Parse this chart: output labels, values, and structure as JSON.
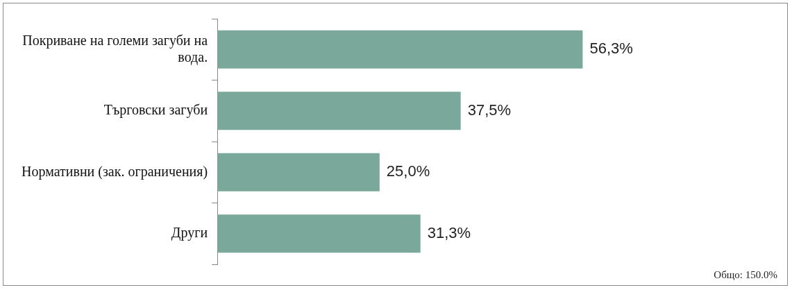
{
  "chart_data": {
    "type": "bar",
    "orientation": "horizontal",
    "categories": [
      "Покриване на големи загуби на вода.",
      "Търговски загуби",
      "Нормативни (зак. ограничения)",
      "Други"
    ],
    "values": [
      56.3,
      37.5,
      25.0,
      31.3
    ],
    "value_labels": [
      "56,3%",
      "37,5%",
      "25,0%",
      "31,3%"
    ],
    "color": "#7aa89a",
    "grid": false,
    "legend": false,
    "annotations": [
      "Общо: 150.0%"
    ]
  }
}
